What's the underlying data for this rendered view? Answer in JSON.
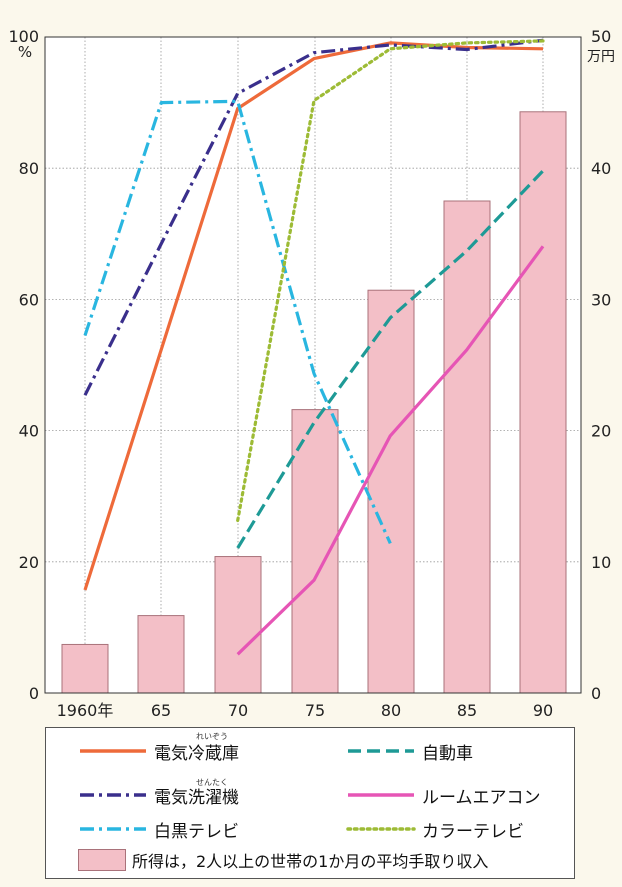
{
  "chart_data": {
    "type": "bar+line",
    "categories": [
      "1960年",
      "65",
      "70",
      "75",
      "80",
      "85",
      "90"
    ],
    "x": [
      1960,
      1965,
      1970,
      1975,
      1980,
      1985,
      1990
    ],
    "left_axis": {
      "unit": "%",
      "ticks": [
        "0",
        "20",
        "40",
        "60",
        "80",
        "100"
      ],
      "ylim": [
        0,
        100
      ]
    },
    "right_axis": {
      "unit": "万円",
      "ticks": [
        "0",
        "10",
        "20",
        "30",
        "40",
        "50"
      ],
      "ylim": [
        0,
        50
      ]
    },
    "bars": {
      "name": "所得は，2人以上の世帯の1か月の平均手取り収入",
      "color": "#f3bfc7",
      "values": [
        3.7,
        5.9,
        10.4,
        21.6,
        30.7,
        37.5,
        44.3
      ]
    },
    "series": [
      {
        "name": "電気冷蔵庫",
        "color": "#ee6a3a",
        "dash": "solid",
        "points": [
          [
            1960,
            15.7
          ],
          [
            1970,
            89.1
          ],
          [
            1975,
            96.7
          ],
          [
            1980,
            99.1
          ],
          [
            1985,
            98.4
          ],
          [
            1990,
            98.2
          ]
        ]
      },
      {
        "name": "電気洗濯機",
        "color": "#3a2f8c",
        "dash": "dashdot",
        "points": [
          [
            1960,
            45.4
          ],
          [
            1965,
            68.5
          ],
          [
            1970,
            91.4
          ],
          [
            1975,
            97.6
          ],
          [
            1980,
            98.8
          ],
          [
            1985,
            98.1
          ],
          [
            1990,
            99.5
          ]
        ]
      },
      {
        "name": "白黒テレビ",
        "color": "#29b6e0",
        "dash": "dashdot",
        "points": [
          [
            1960,
            54.5
          ],
          [
            1965,
            90.0
          ],
          [
            1970,
            90.2
          ],
          [
            1975,
            48.7
          ],
          [
            1980,
            22.8
          ]
        ]
      },
      {
        "name": "自動車",
        "color": "#1e9a96",
        "dash": "dash",
        "points": [
          [
            1970,
            22.1
          ],
          [
            1975,
            41.2
          ],
          [
            1980,
            57.2
          ],
          [
            1985,
            67.4
          ],
          [
            1990,
            79.6
          ]
        ]
      },
      {
        "name": "ルームエアコン",
        "color": "#e655b5",
        "dash": "solid",
        "points": [
          [
            1970,
            5.9
          ],
          [
            1975,
            17.2
          ],
          [
            1980,
            39.2
          ],
          [
            1985,
            52.3
          ],
          [
            1990,
            68.1
          ]
        ]
      },
      {
        "name": "カラーテレビ",
        "color": "#9dbb35",
        "dash": "dot",
        "points": [
          [
            1970,
            26.3
          ],
          [
            1975,
            90.3
          ],
          [
            1980,
            98.2
          ],
          [
            1985,
            99.1
          ],
          [
            1990,
            99.4
          ]
        ]
      }
    ],
    "grid": true,
    "legend_placement": "bottom"
  },
  "legend": {
    "items": [
      {
        "label": "電気冷蔵庫",
        "color": "#ee6a3a",
        "dash": "solid"
      },
      {
        "label": "自動車",
        "color": "#1e9a96",
        "dash": "dash"
      },
      {
        "label": "電気洗濯機",
        "color": "#3a2f8c",
        "dash": "dashdot"
      },
      {
        "label": "ルームエアコン",
        "color": "#e655b5",
        "dash": "solid"
      },
      {
        "label": "白黒テレビ",
        "color": "#29b6e0",
        "dash": "dashdot"
      },
      {
        "label": "カラーテレビ",
        "color": "#9dbb35",
        "dash": "dot"
      }
    ],
    "bar_label": "所得は，2人以上の世帯の1か月の平均手取り収入",
    "furigana": {
      "reizou": "れいぞう",
      "sentaku": "せんたく"
    }
  }
}
